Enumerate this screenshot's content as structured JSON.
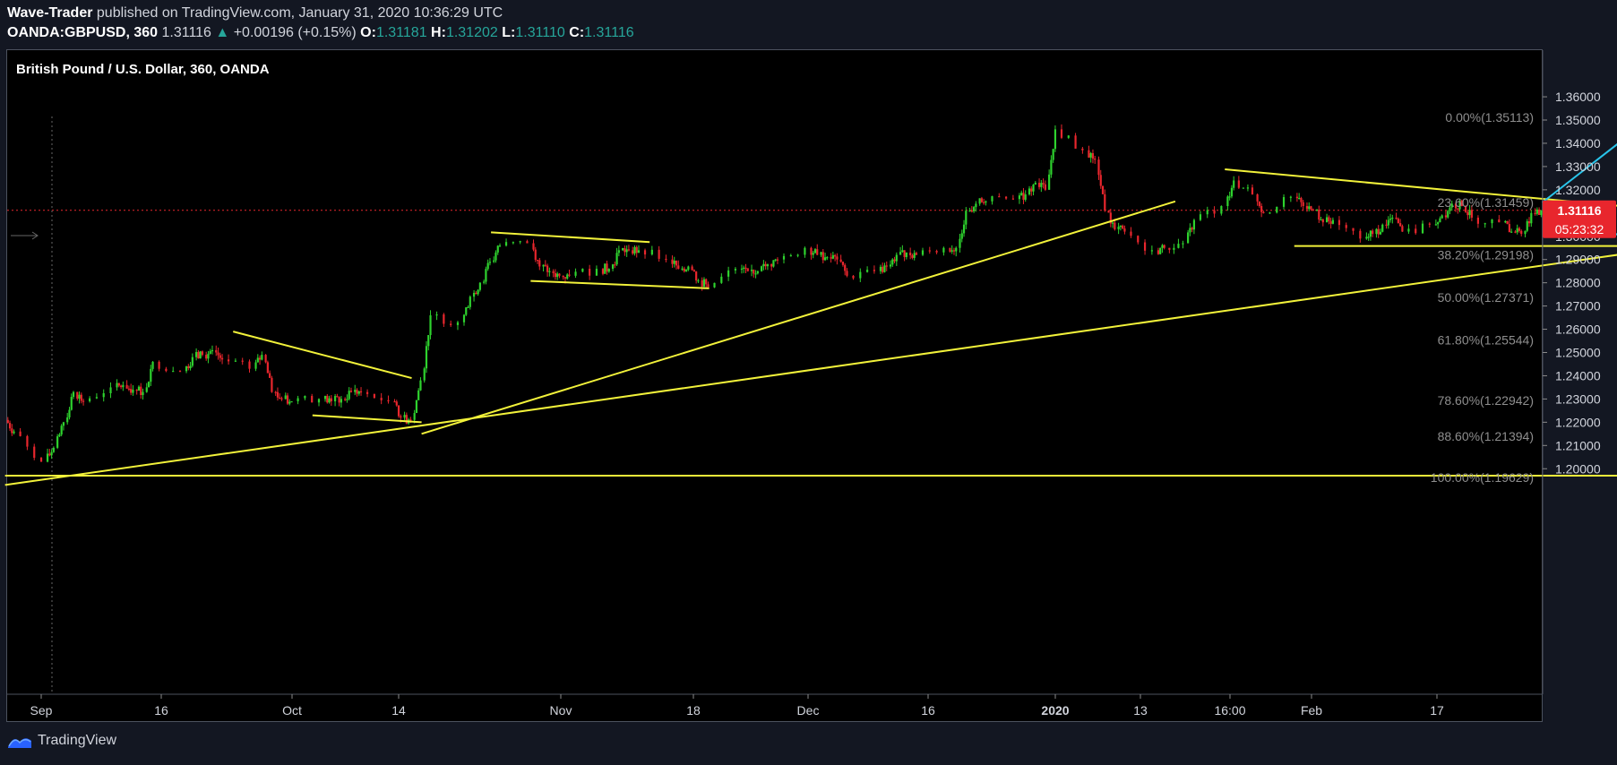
{
  "header": {
    "author": "Wave-Trader",
    "published": "published on TradingView.com, January 31, 2020 10:36:29 UTC",
    "symbol": "OANDA:GBPUSD, 360",
    "last": "1.31116",
    "change": "+0.00196 (+0.15%)",
    "o_label": "O:",
    "o": "1.31181",
    "h_label": "H:",
    "h": "1.31202",
    "l_label": "L:",
    "l": "1.31110",
    "c_label": "C:",
    "c": "1.31116"
  },
  "chart_title": "British Pound / U.S. Dollar, 360, OANDA",
  "footer": {
    "brand": "TradingView"
  },
  "colors": {
    "up": "#2ed22e",
    "down": "#e8262d",
    "trendline": "#f2f23a",
    "arrow": "#29c4ea",
    "price_tag": "#e8262d",
    "price_line": "#e8262d",
    "fib_text": "#8e8e8e"
  },
  "chart_data": {
    "type": "candlestick",
    "ylim": [
      1.195,
      1.364
    ],
    "y_ticks": [
      "1.36000",
      "1.35000",
      "1.34000",
      "1.33000",
      "1.32000",
      "1.31000",
      "1.30000",
      "1.29000",
      "1.28000",
      "1.27000",
      "1.26000",
      "1.25000",
      "1.24000",
      "1.23000",
      "1.22000",
      "1.21000",
      "1.20000"
    ],
    "x_ticks": [
      "Sep",
      "16",
      "Oct",
      "14",
      "Nov",
      "18",
      "Dec",
      "16",
      "2020",
      "13",
      "16:00",
      "Feb",
      "17"
    ],
    "current_price": "1.31116",
    "countdown": "05:23:32",
    "fib_levels": [
      {
        "label": "0.00%(1.35113)",
        "price": 1.35113
      },
      {
        "label": "23.60%(1.31459)",
        "price": 1.31459
      },
      {
        "label": "38.20%(1.29198)",
        "price": 1.29198
      },
      {
        "label": "50.00%(1.27371)",
        "price": 1.27371
      },
      {
        "label": "61.80%(1.25544)",
        "price": 1.25544
      },
      {
        "label": "78.60%(1.22942)",
        "price": 1.22942
      },
      {
        "label": "88.60%(1.21394)",
        "price": 1.21394
      },
      {
        "label": "100.00%(1.19629)",
        "price": 1.19629
      }
    ],
    "closes": [
      [
        "2019-08-29",
        1.221
      ],
      [
        "2019-08-30",
        1.216
      ],
      [
        "2019-09-02",
        1.203
      ],
      [
        "2019-09-03",
        1.209
      ],
      [
        "2019-09-04",
        1.22
      ],
      [
        "2019-09-05",
        1.233
      ],
      [
        "2019-09-06",
        1.229
      ],
      [
        "2019-09-09",
        1.235
      ],
      [
        "2019-09-10",
        1.236
      ],
      [
        "2019-09-11",
        1.234
      ],
      [
        "2019-09-12",
        1.233
      ],
      [
        "2019-09-13",
        1.246
      ],
      [
        "2019-09-16",
        1.242
      ],
      [
        "2019-09-17",
        1.248
      ],
      [
        "2019-09-18",
        1.249
      ],
      [
        "2019-09-19",
        1.251
      ],
      [
        "2019-09-20",
        1.247
      ],
      [
        "2019-09-23",
        1.243
      ],
      [
        "2019-09-24",
        1.249
      ],
      [
        "2019-09-25",
        1.233
      ],
      [
        "2019-09-26",
        1.23
      ],
      [
        "2019-09-27",
        1.229
      ],
      [
        "2019-09-30",
        1.23
      ],
      [
        "2019-10-01",
        1.229
      ],
      [
        "2019-10-02",
        1.23
      ],
      [
        "2019-10-03",
        1.233
      ],
      [
        "2019-10-04",
        1.233
      ],
      [
        "2019-10-07",
        1.229
      ],
      [
        "2019-10-08",
        1.222
      ],
      [
        "2019-10-09",
        1.221
      ],
      [
        "2019-10-10",
        1.238
      ],
      [
        "2019-10-11",
        1.266
      ],
      [
        "2019-10-14",
        1.263
      ],
      [
        "2019-10-15",
        1.274
      ],
      [
        "2019-10-16",
        1.28
      ],
      [
        "2019-10-17",
        1.289
      ],
      [
        "2019-10-18",
        1.296
      ],
      [
        "2019-10-21",
        1.297
      ],
      [
        "2019-10-22",
        1.287
      ],
      [
        "2019-10-23",
        1.285
      ],
      [
        "2019-10-24",
        1.283
      ],
      [
        "2019-10-25",
        1.283
      ],
      [
        "2019-10-28",
        1.286
      ],
      [
        "2019-10-29",
        1.286
      ],
      [
        "2019-10-30",
        1.294
      ],
      [
        "2019-10-31",
        1.294
      ],
      [
        "2019-11-01",
        1.294
      ],
      [
        "2019-11-04",
        1.29
      ],
      [
        "2019-11-05",
        1.286
      ],
      [
        "2019-11-06",
        1.287
      ],
      [
        "2019-11-07",
        1.281
      ],
      [
        "2019-11-08",
        1.278
      ],
      [
        "2019-11-11",
        1.286
      ],
      [
        "2019-11-12",
        1.285
      ],
      [
        "2019-11-13",
        1.285
      ],
      [
        "2019-11-14",
        1.288
      ],
      [
        "2019-11-15",
        1.29
      ],
      [
        "2019-11-18",
        1.295
      ],
      [
        "2019-11-19",
        1.292
      ],
      [
        "2019-11-20",
        1.291
      ],
      [
        "2019-11-21",
        1.29
      ],
      [
        "2019-11-22",
        1.283
      ],
      [
        "2019-11-25",
        1.285
      ],
      [
        "2019-11-26",
        1.287
      ],
      [
        "2019-11-27",
        1.292
      ],
      [
        "2019-11-28",
        1.293
      ],
      [
        "2019-11-29",
        1.292
      ],
      [
        "2019-12-02",
        1.295
      ],
      [
        "2019-12-03",
        1.295
      ],
      [
        "2019-12-04",
        1.311
      ],
      [
        "2019-12-05",
        1.314
      ],
      [
        "2019-12-06",
        1.315
      ],
      [
        "2019-12-09",
        1.316
      ],
      [
        "2019-12-10",
        1.318
      ],
      [
        "2019-12-11",
        1.323
      ],
      [
        "2019-12-12",
        1.32
      ],
      [
        "2019-12-13",
        1.346
      ],
      [
        "2019-12-16",
        1.337
      ],
      [
        "2019-12-17",
        1.333
      ],
      [
        "2019-12-18",
        1.311
      ],
      [
        "2019-12-19",
        1.303
      ],
      [
        "2019-12-20",
        1.302
      ],
      [
        "2019-12-23",
        1.294
      ],
      [
        "2019-12-24",
        1.295
      ],
      [
        "2019-12-26",
        1.297
      ],
      [
        "2019-12-27",
        1.307
      ],
      [
        "2019-12-30",
        1.313
      ],
      [
        "2019-12-31",
        1.324
      ],
      [
        "2020-01-02",
        1.318
      ],
      [
        "2020-01-03",
        1.31
      ],
      [
        "2020-01-06",
        1.317
      ],
      [
        "2020-01-07",
        1.313
      ],
      [
        "2020-01-08",
        1.311
      ],
      [
        "2020-01-09",
        1.306
      ],
      [
        "2020-01-10",
        1.307
      ],
      [
        "2020-01-13",
        1.299
      ],
      [
        "2020-01-14",
        1.301
      ],
      [
        "2020-01-15",
        1.305
      ],
      [
        "2020-01-16",
        1.308
      ],
      [
        "2020-01-17",
        1.302
      ],
      [
        "2020-01-20",
        1.305
      ],
      [
        "2020-01-21",
        1.309
      ],
      [
        "2020-01-22",
        1.314
      ],
      [
        "2020-01-23",
        1.313
      ],
      [
        "2020-01-24",
        1.308
      ],
      [
        "2020-01-27",
        1.306
      ],
      [
        "2020-01-28",
        1.302
      ],
      [
        "2020-01-29",
        1.301
      ],
      [
        "2020-01-30",
        1.31
      ],
      [
        "2020-01-31",
        1.3112
      ]
    ]
  }
}
